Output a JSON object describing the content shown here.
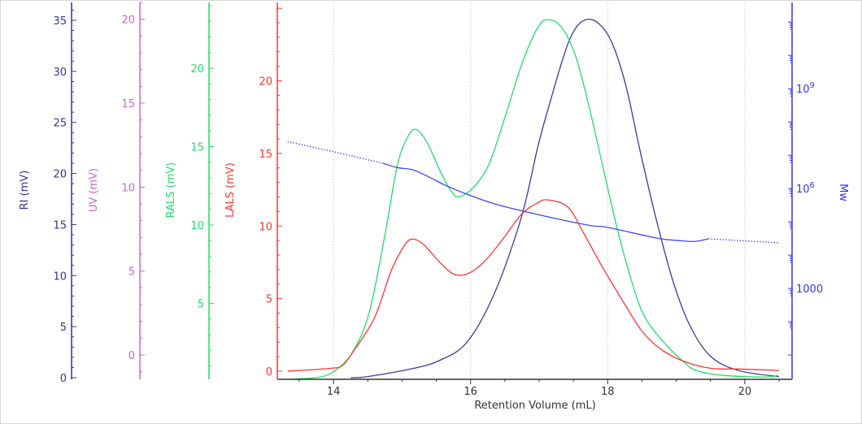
{
  "chart_data": {
    "type": "line",
    "xlabel": "Retention Volume (mL)",
    "xlim": [
      13.18,
      20.69
    ],
    "xticks": [
      14,
      16,
      18,
      20
    ],
    "grid": "vertical dotted at major x ticks",
    "y_axes": [
      {
        "id": "ri",
        "label": "RI (mV)",
        "color": "#33339a",
        "ylim": [
          -0.16,
          36.75
        ],
        "ticks": [
          0,
          5,
          10,
          15,
          20,
          25,
          30,
          35
        ],
        "minor_step": 1
      },
      {
        "id": "uv",
        "label": "UV (mV)",
        "color": "#cc66cc",
        "ylim": [
          -1.45,
          21.0
        ],
        "ticks": [
          0,
          5,
          10,
          15,
          20
        ],
        "minor_step": 1
      },
      {
        "id": "rals",
        "label": "RALS (mV)",
        "color": "#22dd66",
        "ylim": [
          0.15,
          24.2
        ],
        "ticks": [
          5,
          10,
          15,
          20
        ],
        "minor_step": 1
      },
      {
        "id": "lals",
        "label": "LALS (mV)",
        "color": "#ff3333",
        "ylim": [
          -0.56,
          25.4
        ],
        "ticks": [
          0,
          5,
          10,
          15,
          20
        ],
        "minor_step": 1
      },
      {
        "id": "mw",
        "label": "Mw",
        "color": "#3333ff",
        "scale": "log",
        "ylim_log10": [
          0.27,
          11.59
        ],
        "ticks": [
          {
            "log": 3,
            "text": "1000"
          },
          {
            "log": 6,
            "text": "10",
            "sup": "6"
          },
          {
            "log": 9,
            "text": "10",
            "sup": "9"
          }
        ]
      }
    ],
    "series": [
      {
        "name": "RI",
        "axis": "ri",
        "color": "#3a3a9c",
        "x": [
          14.25,
          14.49,
          15.16,
          15.55,
          15.95,
          16.35,
          16.74,
          16.98,
          17.13,
          17.45,
          17.72,
          18.01,
          18.25,
          18.48,
          18.72,
          18.96,
          19.2,
          19.5,
          19.91,
          20.5
        ],
        "y": [
          0,
          0.1,
          0.9,
          1.7,
          3.5,
          8.3,
          15.7,
          22.6,
          26.3,
          33.2,
          35.1,
          33.5,
          29,
          22,
          15.2,
          9.3,
          5.1,
          2.1,
          0.7,
          0.1
        ]
      },
      {
        "name": "RALS",
        "axis": "rals",
        "color": "#22dd66",
        "x": [
          13.33,
          13.81,
          14.05,
          14.28,
          14.52,
          14.76,
          14.93,
          15.08,
          15.2,
          15.36,
          15.56,
          15.71,
          15.83,
          16.04,
          16.27,
          16.51,
          16.75,
          16.98,
          17.13,
          17.33,
          17.53,
          17.72,
          17.92,
          18.12,
          18.31,
          18.51,
          18.78,
          19.1,
          19.3,
          19.69,
          20.28,
          20.49
        ],
        "y": [
          0.15,
          0.3,
          0.8,
          1.9,
          4.4,
          9.6,
          13.8,
          15.6,
          16.1,
          15.3,
          13.4,
          12.2,
          11.8,
          12.4,
          13.9,
          17,
          20.3,
          22.6,
          23.1,
          22.6,
          20.8,
          17.7,
          13.9,
          10.1,
          7.0,
          4.4,
          2.7,
          1.3,
          0.7,
          0.4,
          0.3,
          0.4
        ]
      },
      {
        "name": "LALS",
        "axis": "lals",
        "color": "#ff3333",
        "x": [
          13.33,
          13.97,
          14.13,
          14.28,
          14.6,
          14.84,
          15.04,
          15.16,
          15.32,
          15.55,
          15.75,
          15.95,
          16.19,
          16.47,
          16.74,
          16.98,
          17.13,
          17.42,
          17.65,
          17.92,
          18.25,
          18.51,
          18.78,
          19.1,
          19.5,
          19.91,
          20.5
        ],
        "y": [
          0,
          0.2,
          0.4,
          1.3,
          3.7,
          6.9,
          8.7,
          9.1,
          8.7,
          7.5,
          6.7,
          6.7,
          7.5,
          9.1,
          10.8,
          11.6,
          11.8,
          11.3,
          9.5,
          7.2,
          4.6,
          2.7,
          1.5,
          0.7,
          0.2,
          0.15,
          0.05
        ]
      },
      {
        "name": "Mw",
        "axis": "mw",
        "color": "#4444ff",
        "log10": true,
        "x": [
          13.33,
          13.97,
          14.72,
          14.93,
          15.16,
          15.4,
          15.63,
          15.95,
          16.35,
          16.98,
          17.72,
          18.01,
          18.72,
          19.03,
          19.27,
          19.47,
          20.5
        ],
        "y": [
          7.41,
          7.12,
          6.76,
          6.63,
          6.56,
          6.34,
          6.1,
          5.83,
          5.54,
          5.22,
          4.9,
          4.83,
          4.51,
          4.44,
          4.41,
          4.49,
          4.37
        ],
        "solid_range": [
          14.72,
          19.47
        ]
      }
    ]
  }
}
